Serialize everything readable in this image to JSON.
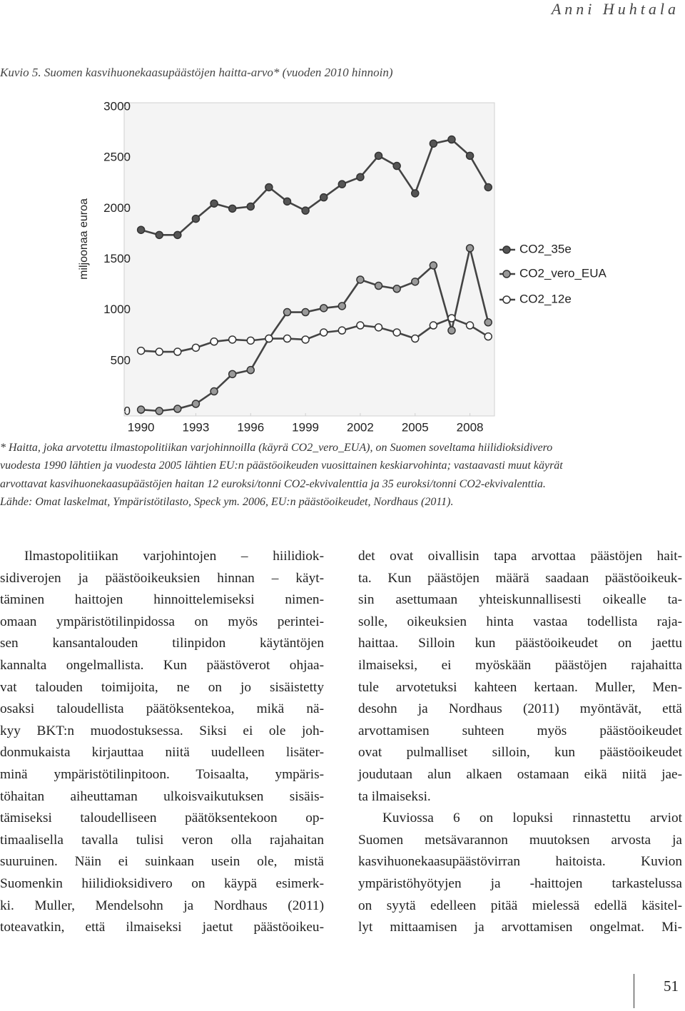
{
  "header": {
    "author": "Anni Huhtala"
  },
  "chart_data": {
    "type": "line",
    "title": "Kuvio 5. Suomen kasvihuonekaasupäästöjen haitta-arvo* (vuoden 2010 hinnoin)",
    "y_label": "miljoonaa euroa",
    "x": [
      1990,
      1991,
      1992,
      1993,
      1994,
      1995,
      1996,
      1997,
      1998,
      1999,
      2000,
      2001,
      2002,
      2003,
      2004,
      2005,
      2006,
      2007,
      2008,
      2009
    ],
    "xlim": [
      1989,
      2009.5
    ],
    "xticks": [
      1990,
      1993,
      1996,
      1999,
      2002,
      2005,
      2008
    ],
    "ylim": [
      0,
      3000
    ],
    "yticks": [
      0,
      500,
      1000,
      1500,
      2000,
      2500,
      3000
    ],
    "grid": false,
    "legend": "right",
    "series": [
      {
        "name": "CO2_35e",
        "color": "#555555",
        "values": [
          1790,
          1740,
          1740,
          1900,
          2050,
          2000,
          2020,
          2210,
          2070,
          1980,
          2110,
          2240,
          2310,
          2520,
          2420,
          2150,
          2640,
          2680,
          2520,
          2210
        ]
      },
      {
        "name": "CO2_vero_EUA",
        "color": "#999999",
        "values": [
          20,
          7,
          28,
          77,
          200,
          370,
          410,
          720,
          980,
          980,
          1020,
          1040,
          1300,
          1240,
          1210,
          1280,
          1440,
          800,
          1610,
          880
        ]
      },
      {
        "name": "CO2_12e",
        "color": "#ffffff",
        "values": [
          600,
          590,
          590,
          630,
          690,
          710,
          700,
          720,
          720,
          710,
          780,
          800,
          850,
          830,
          780,
          720,
          850,
          920,
          850,
          740
        ]
      }
    ]
  },
  "footnote": {
    "lines": [
      "* Haitta, joka arvotettu ilmastopolitiikan varjohinnoilla (käyrä CO2_vero_EUA), on Suomen soveltama hiilidioksidivero",
      "vuodesta 1990 lähtien ja vuodesta 2005 lähtien EU:n päästöoikeuden vuosittainen keskiarvohinta; vastaavasti muut käyrät",
      "arvottavat kasvihuonekaasupäästöjen haitan 12 euroksi/tonni CO2-ekvivalenttia ja 35 euroksi/tonni CO2-ekvivalenttia.",
      "Lähde: Omat laskelmat, Ympäristötilasto, Speck ym. 2006, EU:n päästöoikeudet, Nordhaus (2011)."
    ]
  },
  "body": {
    "columns": [
      {
        "paragraphs": [
          [
            "Ilmastopolitiikan varjohintojen – hiilidiok-",
            "sidiverojen ja päästöoikeuksien hinnan – käyt-",
            "täminen haittojen hinnoittelemiseksi nimen-",
            "omaan ympäristötilinpidossa on myös perintei-",
            "sen kansantalouden tilinpidon käytäntöjen",
            "kannalta ongelmallista. Kun päästöverot ohjaa-",
            "vat talouden toimijoita, ne on jo sisäistetty",
            "osaksi taloudellista päätöksentekoa, mikä nä-",
            "kyy BKT:n muodostuksessa. Siksi ei ole joh-",
            "donmukaista kirjauttaa niitä uudelleen lisäter-",
            "minä ympäristötilinpitoon. Toisaalta, ympäris-",
            "töhaitan aiheuttaman ulkoisvaikutuksen sisäis-",
            "tämiseksi taloudelliseen päätöksentekoon op-",
            "timaalisella tavalla tulisi veron olla rajahaitan",
            "suuruinen. Näin ei suinkaan usein ole, mistä",
            "Suomenkin hiilidioksidivero on käypä esimerk-",
            "ki. Muller, Mendelsohn ja Nordhaus (2011)",
            "toteavatkin, että ilmaiseksi jaetut päästöoikeu-"
          ]
        ]
      },
      {
        "paragraphs": [
          [
            "det ovat oivallisin tapa arvottaa päästöjen hait-",
            "ta. Kun päästöjen määrä saadaan päästöoikeuk-",
            "sin asettumaan yhteiskunnallisesti oikealle ta-",
            "solle, oikeuksien hinta vastaa todellista raja-",
            "haittaa. Silloin kun päästöoikeudet on jaettu",
            "ilmaiseksi, ei myöskään päästöjen rajahaitta",
            "tule arvotetuksi kahteen kertaan. Muller, Men-",
            "desohn ja Nordhaus (2011) myöntävät, että",
            "arvottamisen suhteen myös päästöoikeudet",
            "ovat pulmalliset silloin, kun päästöoikeudet",
            "joudutaan alun alkaen ostamaan eikä niitä jae-",
            "ta ilmaiseksi."
          ],
          [
            "Kuviossa 6 on lopuksi rinnastettu arviot",
            "Suomen metsävarannon muutoksen arvosta ja",
            "kasvihuonekaasupäästövirran haitoista. Kuvion",
            "ympäristöhyötyjen ja -haittojen tarkastelussa",
            "on syytä edelleen pitää mielessä edellä käsitel-",
            "lyt mittaamisen ja arvottamisen ongelmat. Mi-"
          ]
        ]
      }
    ]
  },
  "page_number": 51
}
